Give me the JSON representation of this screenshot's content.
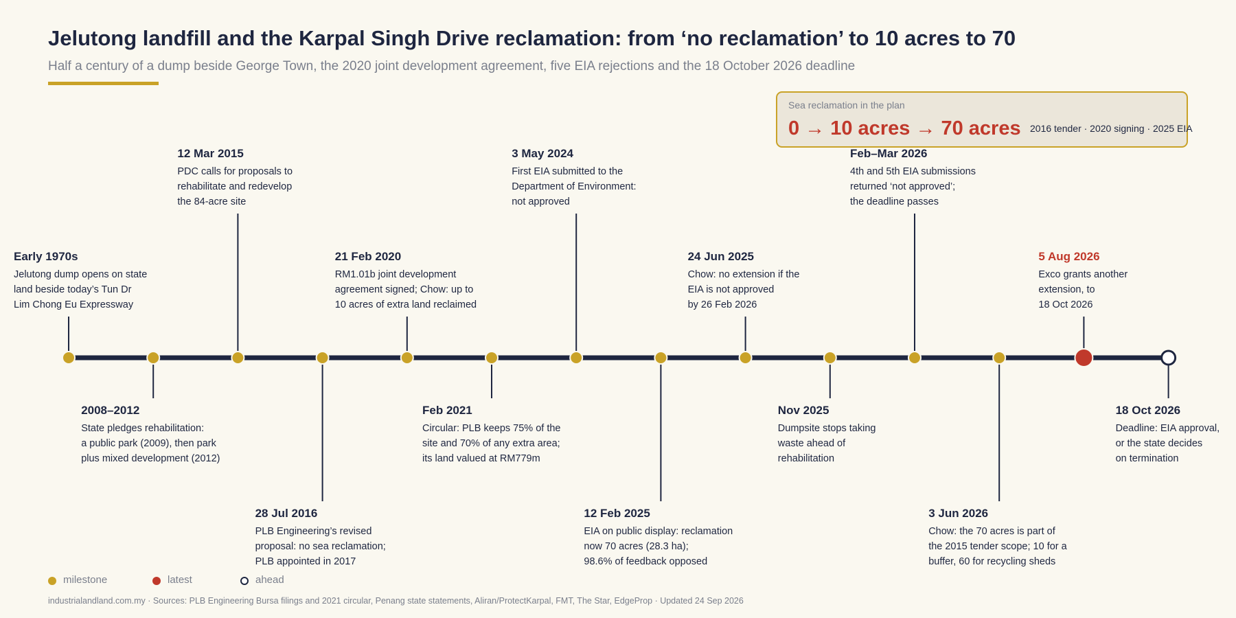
{
  "header": {
    "title": "Jelutong landfill and the Karpal Singh Drive reclamation: from ‘no reclamation’ to 10 acres to 70",
    "subtitle": "Half a century of a dump beside George Town, the 2020 joint development agreement, five EIA rejections and the 18 October 2026 deadline"
  },
  "callout": {
    "label": "Sea reclamation in the plan",
    "value": "0 → 10 acres → 70 acres",
    "note": "2016 tender · 2020 signing · 2025 EIA"
  },
  "colors": {
    "milestone": "#c9a227",
    "latest": "#c0392b",
    "ahead": "#1e2640",
    "axis": "#1e2640",
    "background": "#faf8f0"
  },
  "events": [
    {
      "date": "Early 1970s",
      "text": [
        "Jelutong dump opens on state",
        "land beside today’s Tun Dr",
        "Lim Chong Eu Expressway"
      ],
      "status": "milestone"
    },
    {
      "date": "2008–2012",
      "text": [
        "State pledges rehabilitation:",
        "a public park (2009), then park",
        "plus mixed development (2012)"
      ],
      "status": "milestone"
    },
    {
      "date": "12 Mar 2015",
      "text": [
        "PDC calls for proposals to",
        "rehabilitate and redevelop",
        "the 84-acre site"
      ],
      "status": "milestone"
    },
    {
      "date": "28 Jul 2016",
      "text": [
        "PLB Engineering’s revised",
        "proposal: no sea reclamation;",
        "PLB appointed in 2017"
      ],
      "status": "milestone"
    },
    {
      "date": "21 Feb 2020",
      "text": [
        "RM1.01b joint development",
        "agreement signed; Chow: up to",
        "10 acres of extra land reclaimed"
      ],
      "status": "milestone"
    },
    {
      "date": "Feb 2021",
      "text": [
        "Circular: PLB keeps 75% of the",
        "site and 70% of any extra area;",
        "its land valued at RM779m"
      ],
      "status": "milestone"
    },
    {
      "date": "3 May 2024",
      "text": [
        "First EIA submitted to the",
        "Department of Environment:",
        "not approved"
      ],
      "status": "milestone"
    },
    {
      "date": "12 Feb 2025",
      "text": [
        "EIA on public display: reclamation",
        "now 70 acres (28.3 ha);",
        "98.6% of feedback opposed"
      ],
      "status": "milestone"
    },
    {
      "date": "24 Jun 2025",
      "text": [
        "Chow: no extension if the",
        "EIA is not approved",
        "by 26 Feb 2026"
      ],
      "status": "milestone"
    },
    {
      "date": "Nov 2025",
      "text": [
        "Dumpsite stops taking",
        "waste ahead of",
        "rehabilitation"
      ],
      "status": "milestone"
    },
    {
      "date": "Feb–Mar 2026",
      "text": [
        "4th and 5th EIA submissions",
        "returned ‘not approved’;",
        "the deadline passes"
      ],
      "status": "milestone"
    },
    {
      "date": "3 Jun 2026",
      "text": [
        "Chow: the 70 acres is part of",
        "the 2015 tender scope; 10 for a",
        "buffer, 60 for recycling sheds"
      ],
      "status": "milestone"
    },
    {
      "date": "5 Aug 2026",
      "text": [
        "Exco grants another",
        "extension, to",
        "18 Oct 2026"
      ],
      "status": "latest"
    },
    {
      "date": "18 Oct 2026",
      "text": [
        "Deadline: EIA approval,",
        "or the state decides",
        "on termination"
      ],
      "status": "ahead"
    }
  ],
  "legend": [
    {
      "label": "milestone",
      "status": "milestone"
    },
    {
      "label": "latest",
      "status": "latest"
    },
    {
      "label": "ahead",
      "status": "ahead"
    }
  ],
  "footer": "industrialandland.com.my  ·  Sources: PLB Engineering Bursa filings and 2021 circular, Penang state statements, Aliran/ProtectKarpal, FMT, The Star, EdgeProp  ·  Updated 24 Sep 2026"
}
